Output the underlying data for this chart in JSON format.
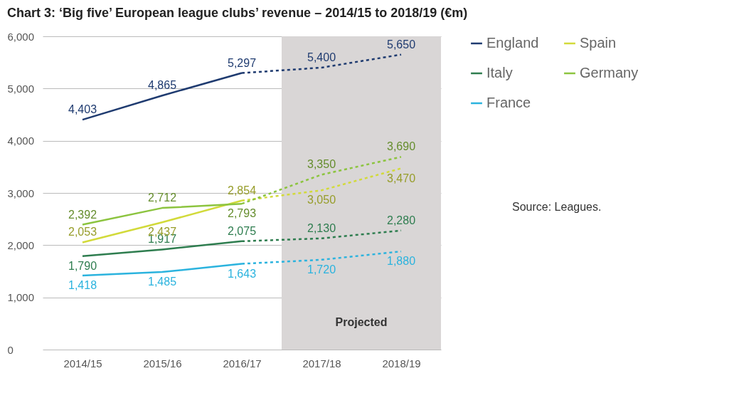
{
  "chart_data": {
    "type": "line",
    "title": "Chart 3: ‘Big five’ European league clubs’ revenue – 2014/15 to 2018/19 (€m)",
    "categories": [
      "2014/15",
      "2015/16",
      "2016/17",
      "2017/18",
      "2018/19"
    ],
    "series": [
      {
        "name": "England",
        "color": "#1f3b70",
        "values": [
          4403,
          4865,
          5297,
          5400,
          5650
        ],
        "value_labels": [
          "4,403",
          "4,865",
          "5,297",
          "5,400",
          "5,650"
        ]
      },
      {
        "name": "Italy",
        "color": "#2e7d4f",
        "values": [
          1790,
          1917,
          2075,
          2130,
          2280
        ],
        "value_labels": [
          "1,790",
          "1,917",
          "2,075",
          "2,130",
          "2,280"
        ]
      },
      {
        "name": "France",
        "color": "#2bb3de",
        "values": [
          1418,
          1485,
          1643,
          1720,
          1880
        ],
        "value_labels": [
          "1,418",
          "1,485",
          "1,643",
          "1,720",
          "1,880"
        ]
      },
      {
        "name": "Spain",
        "color": "#d2da3a",
        "values": [
          2053,
          2437,
          2854,
          3050,
          3470
        ],
        "value_labels": [
          "2,053",
          "2,437",
          "2,854",
          "3,050",
          "3,470"
        ]
      },
      {
        "name": "Germany",
        "color": "#8cc43f",
        "values": [
          2392,
          2712,
          2793,
          3350,
          3690
        ],
        "value_labels": [
          "2,392",
          "2,712",
          "2,793",
          "3,350",
          "3,690"
        ]
      }
    ],
    "ylim": [
      0,
      6000
    ],
    "yticks": [
      0,
      {
        "value": 1000,
        "label": "1,000"
      },
      {
        "value": 2000,
        "label": "2,000"
      },
      {
        "value": 3000,
        "label": "3,000"
      },
      {
        "value": 4000,
        "label": "4,000"
      },
      {
        "value": 5000,
        "label": "5,000"
      },
      {
        "value": 6000,
        "label": "6,000"
      }
    ],
    "grid": "y",
    "legend": "top right",
    "bands": [
      {
        "axis": "x",
        "from": "2017/18",
        "to": "2018/19",
        "label": "Projected",
        "color": "#d9d6d6"
      }
    ],
    "annotations": [
      "Source: Leagues."
    ]
  }
}
